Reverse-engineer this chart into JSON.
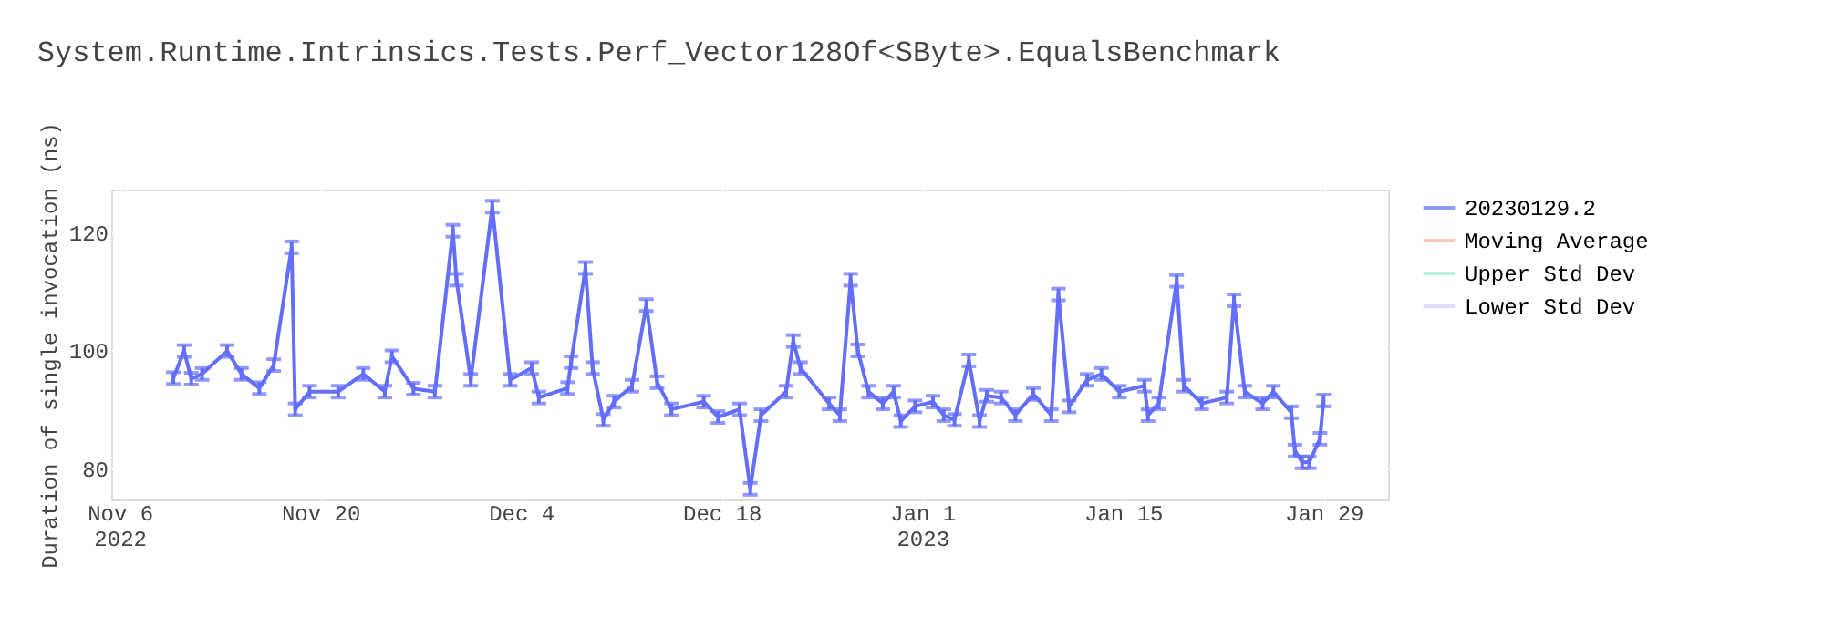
{
  "chart_data": {
    "type": "line",
    "title": "System.Runtime.Intrinsics.Tests.Perf_Vector128Of<SByte>.EqualsBenchmark",
    "ylabel": "Duration of single invocation (ns)",
    "xlim": [
      "2022-11-05T10:00",
      "2023-02-02T12:00"
    ],
    "xticks": [
      {
        "value": "2022-11-06",
        "label": "Nov 6\n2022"
      },
      {
        "value": "2022-11-20",
        "label": "Nov 20"
      },
      {
        "value": "2022-12-04",
        "label": "Dec 4"
      },
      {
        "value": "2022-12-18",
        "label": "Dec 18"
      },
      {
        "value": "2023-01-01",
        "label": "Jan 1\n2023"
      },
      {
        "value": "2023-01-15",
        "label": "Jan 15"
      },
      {
        "value": "2023-01-29",
        "label": "Jan 29"
      }
    ],
    "ylim": [
      74.7,
      127.3
    ],
    "yticks": [
      80,
      100,
      120
    ],
    "grid": true,
    "legend": "top right",
    "marker": "none",
    "line_style": "solid",
    "x": [
      "2022-11-09T18:00",
      "2022-11-10T12:00",
      "2022-11-11T00:00",
      "2022-11-11T18:00",
      "2022-11-13T12:00",
      "2022-11-14T12:00",
      "2022-11-15T18:00",
      "2022-11-16T18:00",
      "2022-11-18T00:00",
      "2022-11-18T06:00",
      "2022-11-19T06:00",
      "2022-11-21T06:00",
      "2022-11-23T00:00",
      "2022-11-24T12:00",
      "2022-11-25T00:00",
      "2022-11-26T12:00",
      "2022-11-28T00:00",
      "2022-11-29T06:00",
      "2022-11-29T12:00",
      "2022-11-30T12:00",
      "2022-12-02T00:00",
      "2022-12-03T06:00",
      "2022-12-04T18:00",
      "2022-12-05T06:00",
      "2022-12-07T06:00",
      "2022-12-07T12:00",
      "2022-12-08T12:00",
      "2022-12-09T00:00",
      "2022-12-09T18:00",
      "2022-12-10T12:00",
      "2022-12-11T18:00",
      "2022-12-12T18:00",
      "2022-12-13T12:00",
      "2022-12-14T12:00",
      "2022-12-16T18:00",
      "2022-12-17T18:00",
      "2022-12-19T06:00",
      "2022-12-20T00:00",
      "2022-12-20T18:00",
      "2022-12-22T12:00",
      "2022-12-23T00:00",
      "2022-12-23T12:00",
      "2022-12-25T12:00",
      "2022-12-26T06:00",
      "2022-12-27T00:00",
      "2022-12-27T12:00",
      "2022-12-28T06:00",
      "2022-12-29T06:00",
      "2022-12-30T00:00",
      "2022-12-30T12:00",
      "2022-12-31T12:00",
      "2023-01-01T18:00",
      "2023-01-02T12:00",
      "2023-01-03T06:00",
      "2023-01-04T06:00",
      "2023-01-05T00:00",
      "2023-01-05T12:00",
      "2023-01-06T12:00",
      "2023-01-07T12:00",
      "2023-01-08T18:00",
      "2023-01-10T00:00",
      "2023-01-10T12:00",
      "2023-01-11T06:00",
      "2023-01-12T12:00",
      "2023-01-13T12:00",
      "2023-01-14T18:00",
      "2023-01-16T12:00",
      "2023-01-16T18:00",
      "2023-01-17T12:00",
      "2023-01-18T18:00",
      "2023-01-19T06:00",
      "2023-01-20T12:00",
      "2023-01-22T06:00",
      "2023-01-22T18:00",
      "2023-01-23T12:00",
      "2023-01-24T18:00",
      "2023-01-25T12:00",
      "2023-01-26T18:00",
      "2023-01-27T00:00",
      "2023-01-27T12:00",
      "2023-01-28T00:00",
      "2023-01-28T18:00",
      "2023-01-29T00:00"
    ],
    "series": [
      {
        "name": "20230129.2",
        "color": "#636efa",
        "values": [
          95.3,
          99.9,
          95.2,
          96,
          99.9,
          96,
          93.6,
          97.5,
          117.5,
          90,
          93,
          93,
          96,
          93,
          99,
          93.5,
          93,
          120.3,
          112,
          95,
          124.4,
          95,
          97,
          92,
          93.6,
          98,
          114,
          97,
          88.2,
          91.3,
          94,
          107.7,
          94.6,
          90,
          91.3,
          88.7,
          90,
          76.5,
          89,
          93,
          101.6,
          97,
          91,
          89,
          112,
          100,
          93,
          91,
          93,
          88,
          90.5,
          91.3,
          89,
          88.2,
          98.3,
          88,
          92.3,
          92,
          89,
          92.6,
          89,
          109.5,
          90.5,
          95,
          96,
          93,
          94,
          89,
          91,
          111.8,
          94,
          91,
          92,
          108.5,
          93,
          91,
          93,
          89.5,
          83,
          81,
          81,
          85,
          91.5
        ],
        "errors": [
          1,
          1,
          1,
          1,
          1,
          1,
          1,
          1,
          1,
          1,
          1,
          1,
          1,
          1,
          1,
          1,
          1,
          1,
          1,
          1,
          1,
          1,
          1,
          1,
          1,
          1,
          1,
          1,
          1,
          1,
          1,
          1,
          1,
          1,
          1,
          1,
          1,
          1,
          1,
          1,
          1,
          1,
          1,
          1,
          1,
          1,
          1,
          1,
          1,
          1,
          1,
          1,
          1,
          1,
          1,
          1,
          1,
          1,
          1,
          1,
          1,
          1,
          1,
          1,
          1,
          1,
          1,
          1,
          1,
          1,
          1,
          1,
          1,
          1,
          1,
          1,
          1,
          1,
          1,
          1,
          1,
          1,
          1
        ]
      },
      {
        "name": "Moving Average",
        "color": "#f7b3a5",
        "values": [
          null,
          null,
          null,
          null,
          null,
          null,
          null,
          null,
          null,
          null,
          null,
          null,
          null,
          null,
          null,
          null,
          null,
          null,
          null,
          null,
          null,
          null,
          null,
          null,
          null,
          null,
          null,
          null,
          null,
          null,
          null,
          null,
          null,
          null,
          null,
          null,
          null,
          null,
          null,
          null,
          null,
          null,
          null,
          null,
          null,
          null,
          null,
          null,
          null,
          null,
          null,
          null,
          null,
          null,
          null,
          null,
          null,
          null,
          null,
          null,
          null,
          null,
          null,
          null,
          null,
          null,
          null,
          null,
          null,
          null,
          null,
          null,
          null,
          null,
          null,
          null,
          null,
          null,
          null,
          null,
          null,
          null,
          null
        ]
      },
      {
        "name": "Upper Std Dev",
        "color": "#9ce9d2",
        "values": [
          null,
          null,
          null,
          null,
          null,
          null,
          null,
          null,
          null,
          null,
          null,
          null,
          null,
          null,
          null,
          null,
          null,
          null,
          null,
          null,
          null,
          null,
          null,
          null,
          null,
          null,
          null,
          null,
          null,
          null,
          null,
          null,
          null,
          null,
          null,
          null,
          null,
          null,
          null,
          null,
          null,
          null,
          null,
          null,
          null,
          null,
          null,
          null,
          null,
          null,
          null,
          null,
          null,
          null,
          null,
          null,
          null,
          null,
          null,
          null,
          null,
          null,
          null,
          null,
          null,
          null,
          null,
          null,
          null,
          null,
          null,
          null,
          null,
          null,
          null,
          null,
          null,
          null,
          null,
          null,
          null,
          null,
          null
        ]
      },
      {
        "name": "Lower Std Dev",
        "color": "#d8cbfd",
        "values": [
          null,
          null,
          null,
          null,
          null,
          null,
          null,
          null,
          null,
          null,
          null,
          null,
          null,
          null,
          null,
          null,
          null,
          null,
          null,
          null,
          null,
          null,
          null,
          null,
          null,
          null,
          null,
          null,
          null,
          null,
          null,
          null,
          null,
          null,
          null,
          null,
          null,
          null,
          null,
          null,
          null,
          null,
          null,
          null,
          null,
          null,
          null,
          null,
          null,
          null,
          null,
          null,
          null,
          null,
          null,
          null,
          null,
          null,
          null,
          null,
          null,
          null,
          null,
          null,
          null,
          null,
          null,
          null,
          null,
          null,
          null,
          null,
          null,
          null,
          null,
          null,
          null,
          null,
          null,
          null,
          null,
          null,
          null
        ]
      }
    ]
  }
}
